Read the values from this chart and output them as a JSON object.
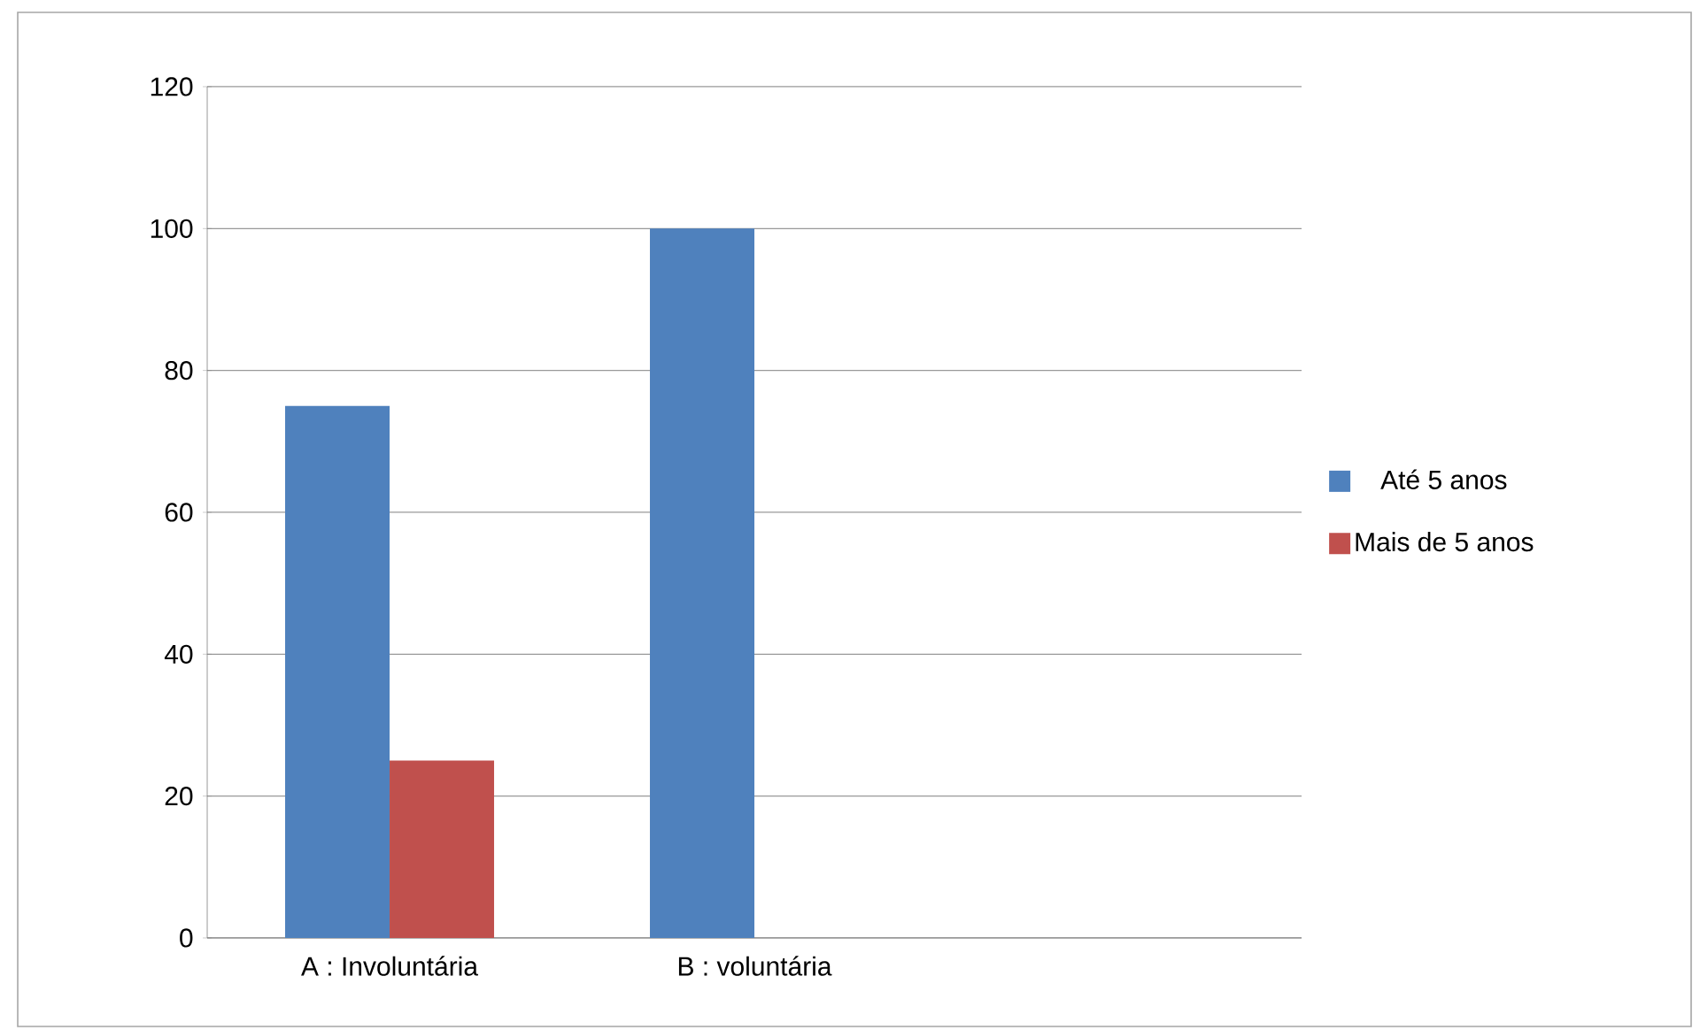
{
  "chart_data": {
    "type": "bar",
    "categories": [
      "A : Involuntária",
      "B : voluntária",
      null
    ],
    "series": [
      {
        "name": "Até 5 anos",
        "color": "#4f81bd",
        "values": [
          75,
          100,
          null
        ]
      },
      {
        "name": "Mais de 5 anos",
        "color": "#c0504d",
        "values": [
          25,
          0,
          null
        ]
      }
    ],
    "ylim": [
      0,
      120
    ],
    "yticks": [
      0,
      20,
      40,
      60,
      80,
      100,
      120
    ],
    "grid": "y",
    "legend": "right"
  }
}
